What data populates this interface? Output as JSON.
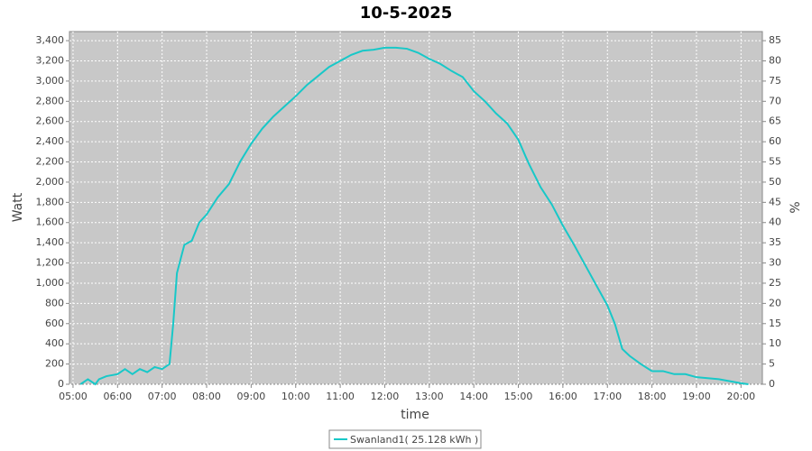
{
  "chart_data": {
    "type": "line",
    "title": "10-5-2025",
    "x_label": "time",
    "y_label": "Watt",
    "y2_label": "%",
    "x": [
      5.1667,
      5.3333,
      5.5,
      5.5833,
      5.75,
      6.0,
      6.1667,
      6.3333,
      6.5,
      6.6667,
      6.8333,
      7.0,
      7.1667,
      7.25,
      7.3333,
      7.5,
      7.6667,
      7.8333,
      8.0,
      8.25,
      8.5,
      8.75,
      9.0,
      9.25,
      9.5,
      9.75,
      10.0,
      10.25,
      10.5,
      10.75,
      11.0,
      11.25,
      11.5,
      11.75,
      12.0,
      12.25,
      12.5,
      12.75,
      13.0,
      13.25,
      13.5,
      13.75,
      14.0,
      14.25,
      14.5,
      14.75,
      15.0,
      15.1667,
      15.25,
      15.5,
      15.75,
      16.0,
      16.25,
      16.5,
      16.75,
      17.0,
      17.1667,
      17.3333,
      17.5,
      17.75,
      18.0,
      18.25,
      18.5,
      18.75,
      19.0,
      19.25,
      19.5,
      19.75,
      20.0,
      20.1667
    ],
    "series": [
      {
        "name": "Swanland1( 25.128 kWh )",
        "color": "#18c8c8",
        "values": [
          0,
          50,
          0,
          50,
          80,
          100,
          150,
          100,
          150,
          120,
          170,
          150,
          200,
          600,
          1100,
          1380,
          1420,
          1600,
          1680,
          1850,
          1980,
          2200,
          2380,
          2530,
          2650,
          2750,
          2850,
          2960,
          3050,
          3140,
          3200,
          3260,
          3300,
          3310,
          3330,
          3330,
          3320,
          3280,
          3220,
          3170,
          3100,
          3040,
          2900,
          2800,
          2680,
          2580,
          2420,
          2250,
          2170,
          1950,
          1780,
          1570,
          1380,
          1180,
          980,
          780,
          600,
          350,
          280,
          200,
          130,
          130,
          100,
          100,
          70,
          60,
          50,
          30,
          10,
          0
        ]
      }
    ],
    "xlim": [
      4.92,
      20.48
    ],
    "xticks": [
      {
        "value": 5,
        "label": "05:00"
      },
      {
        "value": 6,
        "label": "06:00"
      },
      {
        "value": 7,
        "label": "07:00"
      },
      {
        "value": 8,
        "label": "08:00"
      },
      {
        "value": 9,
        "label": "09:00"
      },
      {
        "value": 10,
        "label": "10:00"
      },
      {
        "value": 11,
        "label": "11:00"
      },
      {
        "value": 12,
        "label": "12:00"
      },
      {
        "value": 13,
        "label": "13:00"
      },
      {
        "value": 14,
        "label": "14:00"
      },
      {
        "value": 15,
        "label": "15:00"
      },
      {
        "value": 16,
        "label": "16:00"
      },
      {
        "value": 17,
        "label": "17:00"
      },
      {
        "value": 18,
        "label": "18:00"
      },
      {
        "value": 19,
        "label": "19:00"
      },
      {
        "value": 20,
        "label": "20:00"
      }
    ],
    "ylim": [
      0,
      3490
    ],
    "yticks": [
      0,
      200,
      400,
      600,
      800,
      {
        "value": 1000,
        "label": "1,000"
      },
      {
        "value": 1200,
        "label": "1,200"
      },
      {
        "value": 1400,
        "label": "1,400"
      },
      {
        "value": 1600,
        "label": "1,600"
      },
      {
        "value": 1800,
        "label": "1,800"
      },
      {
        "value": 2000,
        "label": "2,000"
      },
      {
        "value": 2200,
        "label": "2,200"
      },
      {
        "value": 2400,
        "label": "2,400"
      },
      {
        "value": 2600,
        "label": "2,600"
      },
      {
        "value": 2800,
        "label": "2,800"
      },
      {
        "value": 3000,
        "label": "3,000"
      },
      {
        "value": 3200,
        "label": "3,200"
      },
      {
        "value": 3400,
        "label": "3,400"
      }
    ],
    "y2lim": [
      0,
      87.25
    ],
    "y2ticks": [
      0,
      5,
      10,
      15,
      20,
      25,
      30,
      35,
      40,
      45,
      50,
      55,
      60,
      65,
      70,
      75,
      80,
      85
    ],
    "grid": true,
    "legend": "bottom",
    "plot_background": "#c8c8c8"
  }
}
